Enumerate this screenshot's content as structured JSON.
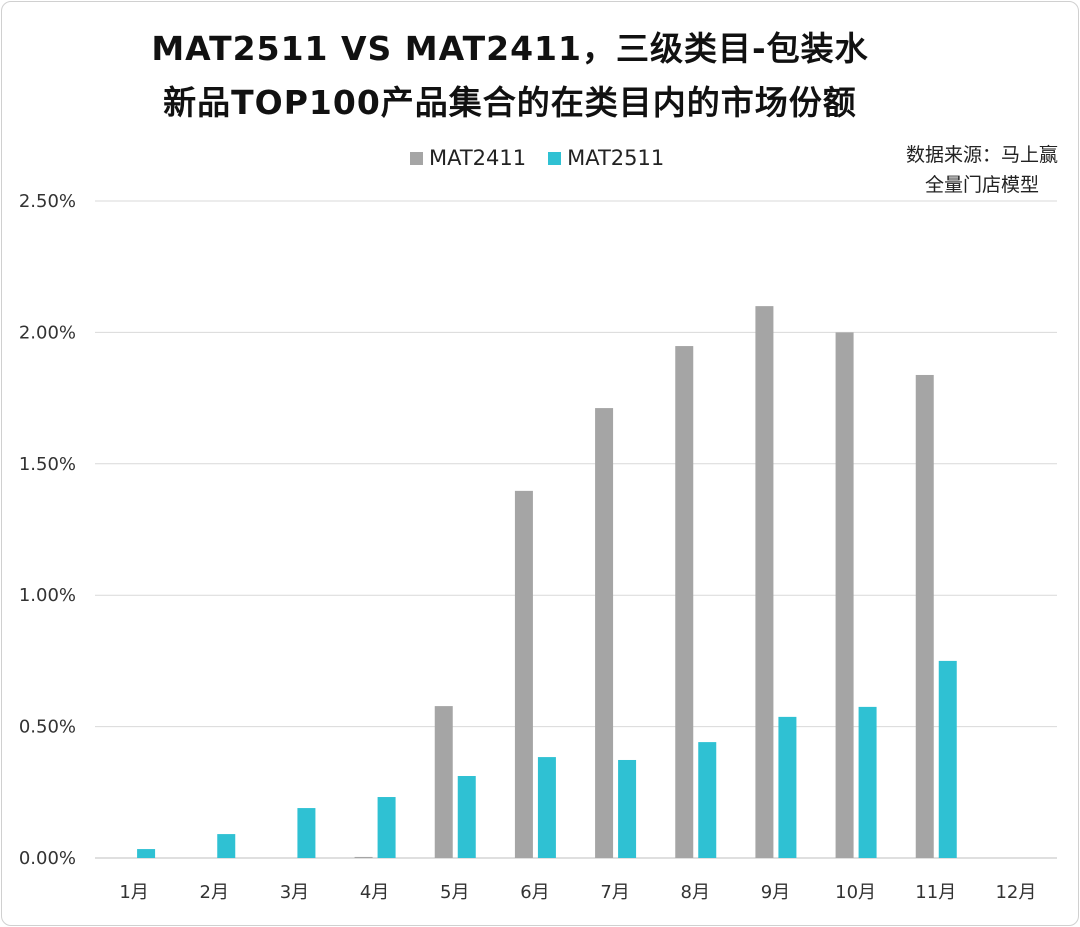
{
  "chart_data": {
    "type": "bar",
    "title_line1": "MAT2511 VS MAT2411，三级类目-包装水",
    "title_line2": "新品TOP100产品集合的在类目内的市场份额",
    "source_line1": "数据来源：马上赢",
    "source_line2": "全量门店模型",
    "categories": [
      "1月",
      "2月",
      "3月",
      "4月",
      "5月",
      "6月",
      "7月",
      "8月",
      "9月",
      "10月",
      "11月",
      "12月"
    ],
    "series": [
      {
        "name": "MAT2411",
        "color": "#a5a5a5",
        "values": [
          0,
          0,
          0,
          0.004,
          0.578,
          1.397,
          1.712,
          1.948,
          2.1,
          2.0,
          1.838,
          null
        ]
      },
      {
        "name": "MAT2511",
        "color": "#2fc1d3",
        "values": [
          0.034,
          0.091,
          0.19,
          0.232,
          0.312,
          0.384,
          0.373,
          0.441,
          0.537,
          0.575,
          0.75,
          null
        ]
      }
    ],
    "yticks": [
      "0.00%",
      "0.50%",
      "1.00%",
      "1.50%",
      "2.00%",
      "2.50%"
    ],
    "ylim": [
      0,
      2.5
    ],
    "yunit": "%",
    "grid": true,
    "legend": "top"
  }
}
